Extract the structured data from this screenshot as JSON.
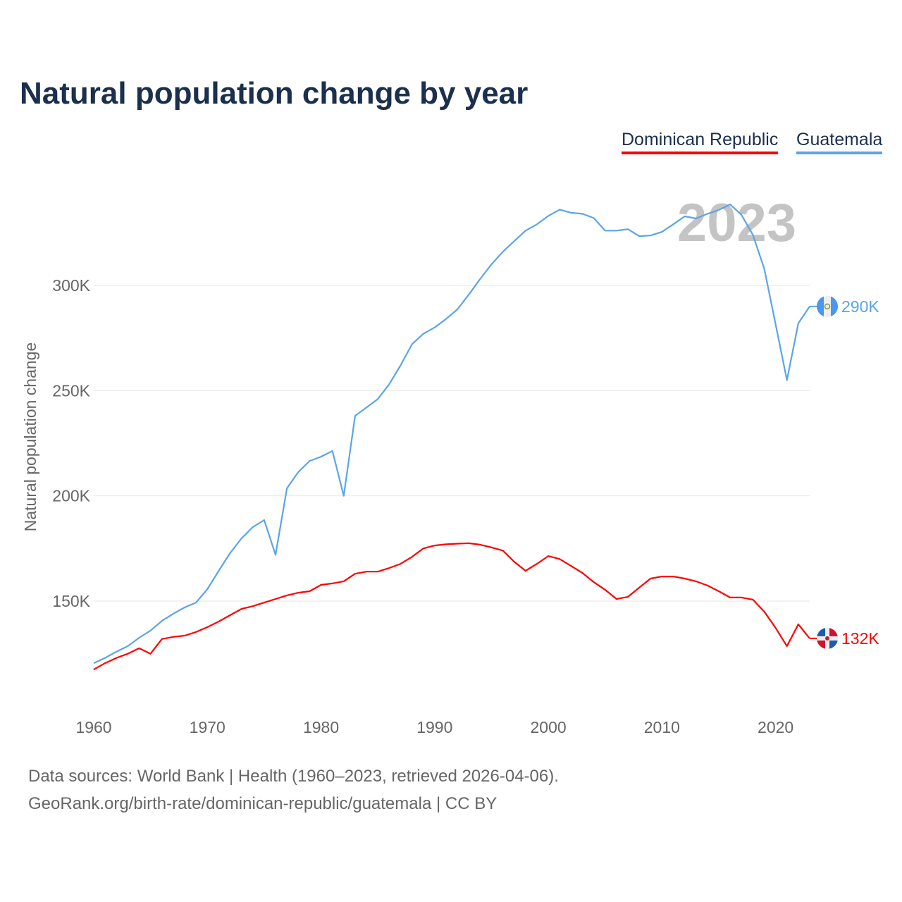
{
  "title": "Natural population change by year",
  "footer": {
    "line1": "Data sources: World Bank | Health (1960–2023, retrieved 2026-04-06).",
    "line2": "GeoRank.org/birth-rate/dominican-republic/guatemala | CC BY"
  },
  "chart_data": {
    "type": "line",
    "title": "Natural population change by year",
    "xlabel": "",
    "ylabel": "Natural population change",
    "year_watermark": "2023",
    "xlim": [
      1960,
      2023
    ],
    "x_ticks": [
      "1960",
      "1970",
      "1980",
      "1990",
      "2000",
      "2010",
      "2020"
    ],
    "y_ticks": [
      {
        "v": 150,
        "label": "150K"
      },
      {
        "v": 200,
        "label": "200K"
      },
      {
        "v": 250,
        "label": "250K"
      },
      {
        "v": 300,
        "label": "300K"
      }
    ],
    "grid": true,
    "legend_placement": "top-right",
    "units": "thousands",
    "series": [
      {
        "name": "Dominican Republic",
        "color": "#ff0000",
        "end_label": "132K",
        "flag": "dominican-republic-flag",
        "values": [
          117.5,
          120.5,
          123,
          125,
          127.6,
          125,
          132,
          133,
          133.6,
          135.3,
          137.6,
          140.3,
          143.3,
          146.3,
          147.6,
          149.3,
          151,
          152.7,
          154,
          154.7,
          157.7,
          158.4,
          159.4,
          163,
          164,
          164,
          165.7,
          167.7,
          171,
          175,
          176.4,
          177,
          177.3,
          177.5,
          176.8,
          175.5,
          174,
          168.7,
          164.4,
          167.7,
          171.4,
          170,
          166.7,
          163.4,
          159,
          155.4,
          151,
          152,
          156.4,
          160.7,
          161.7,
          161.7,
          160.7,
          159.4,
          157.4,
          154.7,
          151.7,
          151.7,
          150.7,
          145,
          137.3,
          128.6,
          139,
          132.3
        ]
      },
      {
        "name": "Guatemala",
        "color": "#5ba4ea",
        "end_label": "290K",
        "flag": "guatemala-flag",
        "values": [
          120.5,
          123,
          126,
          128.6,
          132.6,
          136,
          140.6,
          144,
          147,
          149.3,
          155.7,
          164.4,
          172.8,
          179.8,
          185.2,
          188.5,
          172,
          203.6,
          211.3,
          216.6,
          218.6,
          221.3,
          200,
          238,
          242,
          246,
          253,
          262,
          272,
          277,
          280,
          284,
          288.6,
          295.6,
          303,
          310,
          316,
          321,
          326,
          329,
          333,
          336,
          334.5,
          334,
          332,
          326,
          326,
          326.7,
          323.4,
          323.7,
          325.4,
          329,
          332.8,
          331.8,
          334,
          335.8,
          338.5,
          333.5,
          324,
          308,
          281.6,
          255,
          282,
          290
        ]
      }
    ]
  }
}
